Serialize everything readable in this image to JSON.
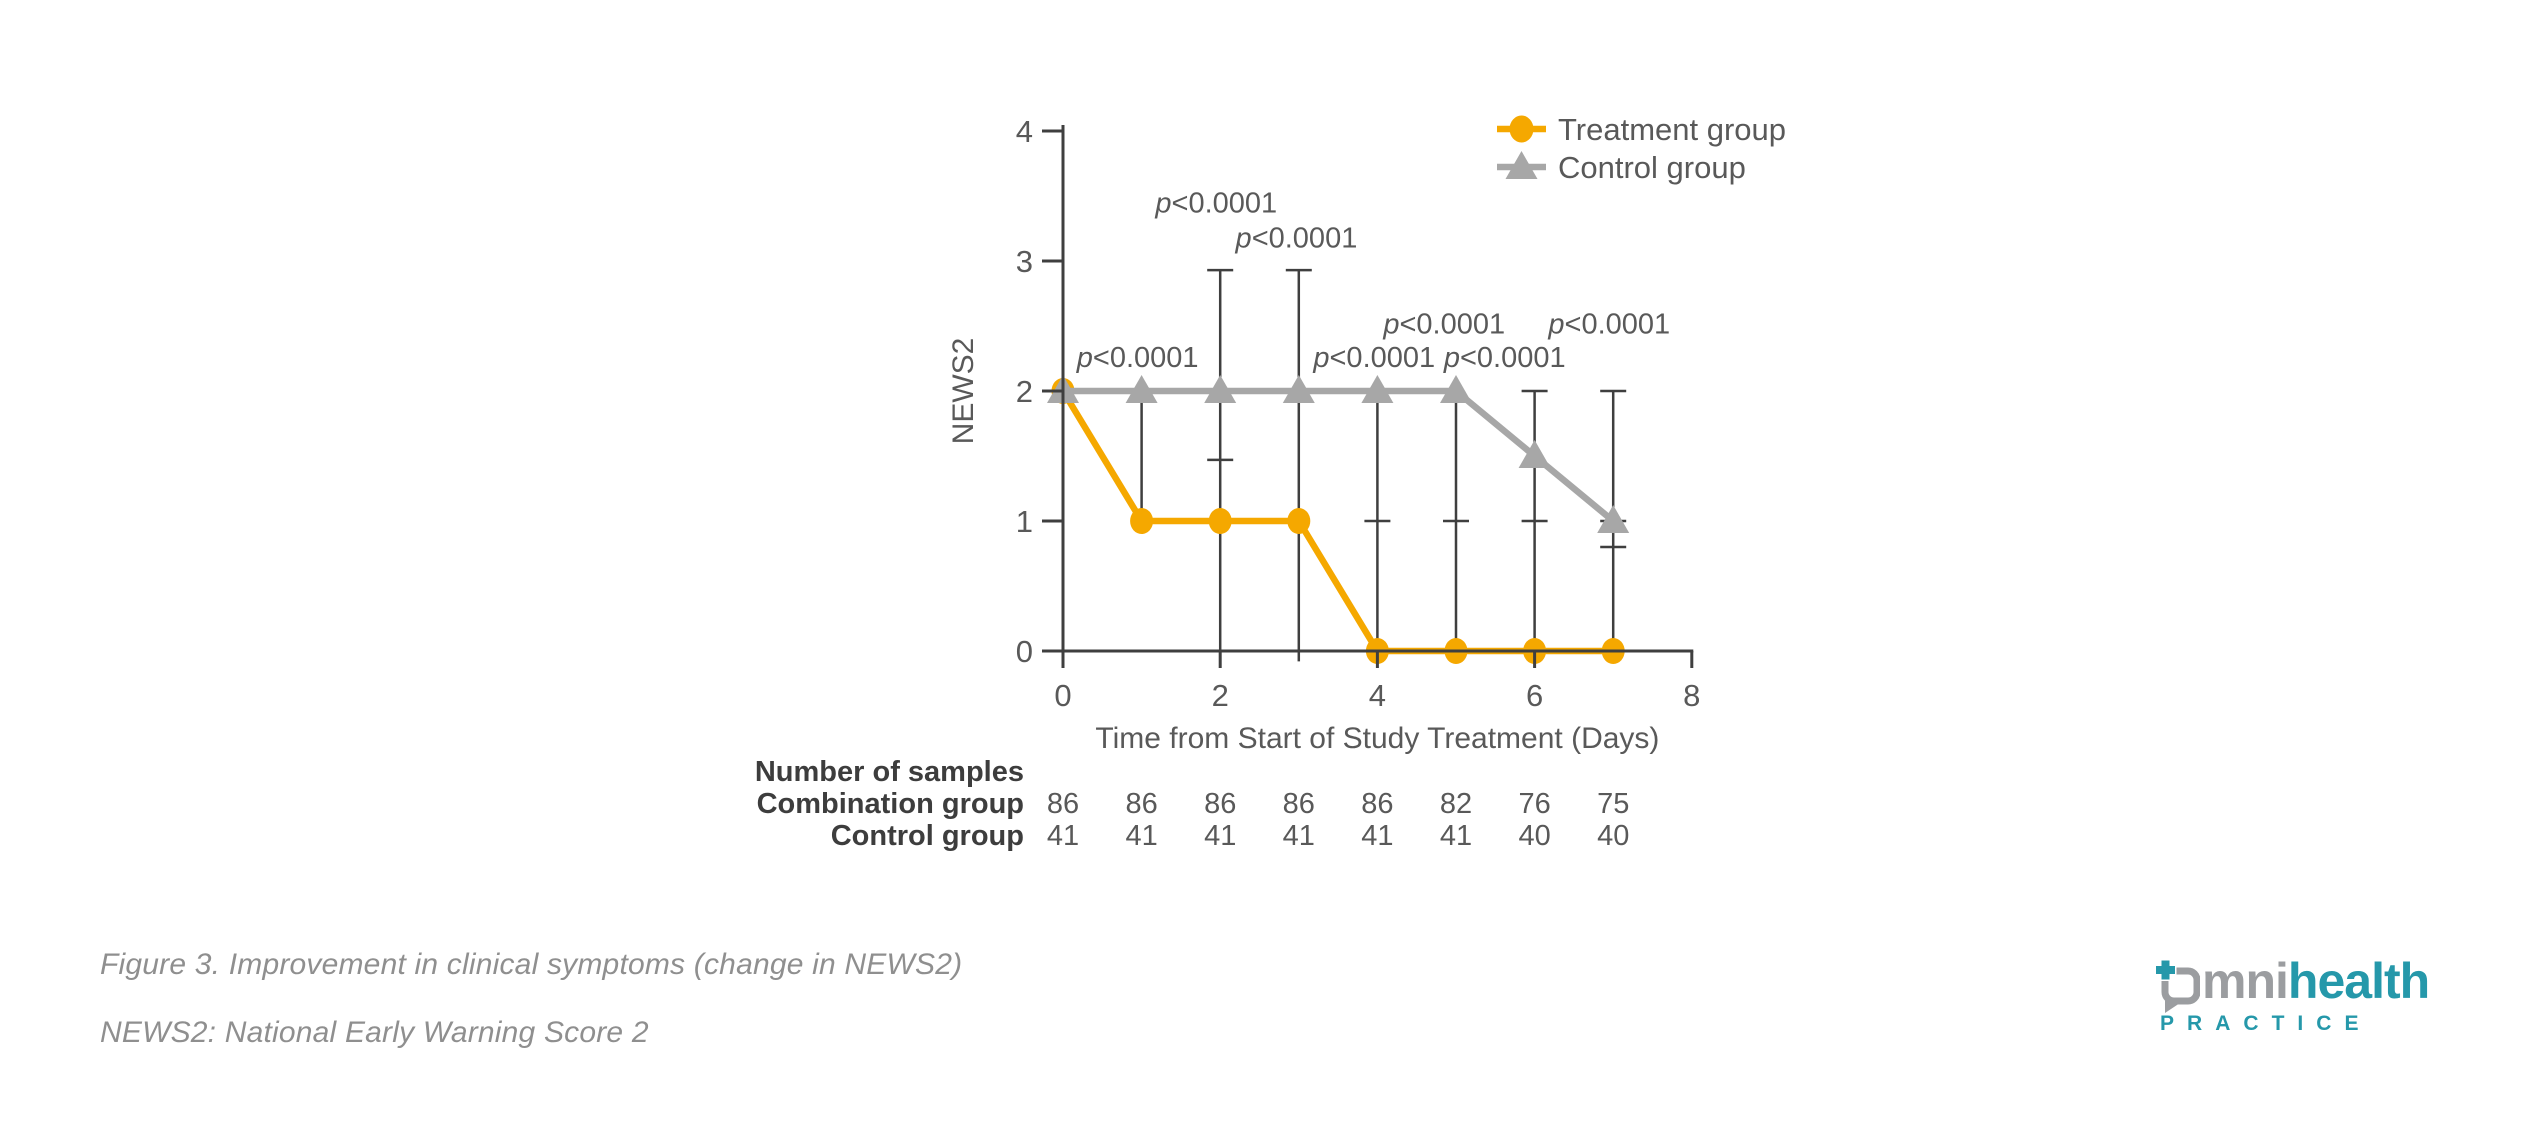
{
  "chart_data": {
    "type": "line",
    "xlabel": "Time from Start of Study Treatment (Days)",
    "ylabel": "NEWS2",
    "xlim": [
      0,
      8
    ],
    "ylim": [
      0,
      4
    ],
    "xticks": [
      0,
      2,
      4,
      6,
      8
    ],
    "yticks": [
      0,
      1,
      2,
      3,
      4
    ],
    "grid": false,
    "legend_position": "top-right",
    "x": [
      0,
      1,
      2,
      3,
      4,
      5,
      6,
      7
    ],
    "series": [
      {
        "name": "Treatment group",
        "marker": "circle",
        "color": "#F5A800",
        "values": [
          2,
          1,
          1,
          1,
          0,
          0,
          0,
          0
        ]
      },
      {
        "name": "Control group",
        "marker": "triangle",
        "color": "#A7A7A7",
        "values": [
          2,
          2,
          2,
          2,
          2,
          2,
          1.5,
          1
        ]
      }
    ],
    "error_bars": [
      {
        "x": 1,
        "lo": 1,
        "hi": 2,
        "caps": []
      },
      {
        "x": 2,
        "lo": 0,
        "hi": 2.93,
        "caps": [
          2.93,
          1.47
        ]
      },
      {
        "x": 3,
        "lo": -0.08,
        "hi": 2.93,
        "caps": [
          2.93
        ]
      },
      {
        "x": 4,
        "lo": -0.08,
        "hi": 2,
        "caps": [
          1
        ]
      },
      {
        "x": 5,
        "lo": -0.08,
        "hi": 2,
        "caps": [
          1
        ]
      },
      {
        "x": 6,
        "lo": -0.08,
        "hi": 2,
        "caps": [
          2,
          1
        ]
      },
      {
        "x": 7,
        "lo": -0.08,
        "hi": 2,
        "caps": [
          2,
          1,
          0.8
        ]
      }
    ],
    "annotations": [
      {
        "x": 0.95,
        "y": 2.26,
        "text": "p<0.0001"
      },
      {
        "x": 1.95,
        "y": 3.45,
        "text": "p<0.0001"
      },
      {
        "x": 2.97,
        "y": 3.18,
        "text": "p<0.0001"
      },
      {
        "x": 3.96,
        "y": 2.26,
        "text": "p<0.0001"
      },
      {
        "x": 4.85,
        "y": 2.52,
        "text": "p<0.0001"
      },
      {
        "x": 5.62,
        "y": 2.26,
        "text": "p<0.0001"
      },
      {
        "x": 6.95,
        "y": 2.52,
        "text": "p<0.0001"
      }
    ]
  },
  "samples_table": {
    "title": "Number of samples",
    "rows": [
      {
        "label": "Combination group",
        "values": [
          "86",
          "86",
          "86",
          "86",
          "86",
          "82",
          "76",
          "75"
        ]
      },
      {
        "label": "Control group",
        "values": [
          "41",
          "41",
          "41",
          "41",
          "41",
          "41",
          "40",
          "40"
        ]
      }
    ]
  },
  "captions": {
    "figure": "Figure 3. Improvement in clinical symptoms (change in NEWS2)",
    "note": "NEWS2: National Early Warning Score 2"
  },
  "logo": {
    "word_rest": "mni",
    "word_highlight": "health",
    "subtext": "PRACTICE"
  },
  "colors": {
    "treatment": "#F5A800",
    "control": "#A7A7A7",
    "axis": "#3F3F3F",
    "error_bar": "#3F3F3F",
    "text": "#595959",
    "table_label": "#3D3D3D",
    "caption": "#8F8F8F",
    "logo_teal": "#2598AA",
    "logo_gray": "#9B9DA0",
    "background": "#FFFFFF"
  }
}
